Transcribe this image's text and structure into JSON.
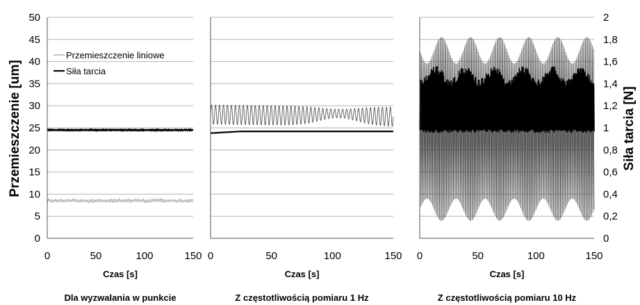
{
  "chart_data": {
    "type": "line",
    "layout": "three-panel",
    "left_axis": {
      "label": "Przemieszczenie [um]",
      "range": [
        0,
        50
      ],
      "ticks": [
        "0",
        "5",
        "10",
        "15",
        "20",
        "25",
        "30",
        "35",
        "40",
        "45",
        "50"
      ]
    },
    "right_axis": {
      "label": "Siła tarcia [N]",
      "range": [
        0,
        2
      ],
      "ticks": [
        "0",
        "0,2",
        "0,4",
        "0,6",
        "0,8",
        "1",
        "1,2",
        "1,4",
        "1,6",
        "1,8",
        "2"
      ]
    },
    "x_ticks": [
      "0",
      "50",
      "100",
      "150"
    ],
    "xlim": [
      0,
      150
    ],
    "grid": "horizontal",
    "legend": {
      "placement": "top-left of first panel",
      "entries": [
        {
          "label": "Przemieszczenie liniowe",
          "color": "#888888"
        },
        {
          "label": "Siła tarcia",
          "color": "#000000"
        }
      ]
    },
    "panels": [
      {
        "xlabel": "Czas [s]",
        "caption": "Dla wyzwalania w punkcie",
        "series": [
          {
            "name": "Przemieszczenie liniowe",
            "axis": "left",
            "pattern": "noise",
            "mean": 8.5,
            "amplitude": 0.6,
            "cycles": 60,
            "color": "#888888",
            "width": 0.8
          },
          {
            "name": "Siła tarcia",
            "axis": "left",
            "pattern": "noise",
            "mean": 24.5,
            "amplitude": 0.25,
            "cycles": 80,
            "color": "#000000",
            "width": 2.2
          }
        ]
      },
      {
        "xlabel": "Czas [s]",
        "caption": "Z częstotliwością pomiaru 1 Hz",
        "series": [
          {
            "name": "Przemieszczenie liniowe",
            "axis": "left",
            "pattern": "oscillation",
            "center_start": 28,
            "center_end": 27.5,
            "amplitude": 2.2,
            "amplitude_dip_at": 105,
            "amplitude_dip_to": 1.0,
            "cycles": 46,
            "color": "#555555",
            "width": 0.9
          },
          {
            "name": "Siła tarcia",
            "axis": "left",
            "pattern": "ramp",
            "start": 23.8,
            "end": 24.2,
            "color": "#000000",
            "width": 2.2
          }
        ]
      },
      {
        "xlabel": "Czas [s]",
        "caption": "Z częstotliwością pomiaru 10 Hz",
        "series": [
          {
            "name": "Przemieszczenie liniowe",
            "axis": "left",
            "pattern": "dense",
            "low": 4.0,
            "high": 45.5,
            "cycles": 150,
            "color": "#444444",
            "width": 0.7
          },
          {
            "name": "Siła tarcia",
            "axis": "left",
            "pattern": "band",
            "low": 23.0,
            "high": 37.0,
            "center": 25.0,
            "color": "#000000",
            "width": 1.6
          }
        ]
      }
    ]
  }
}
